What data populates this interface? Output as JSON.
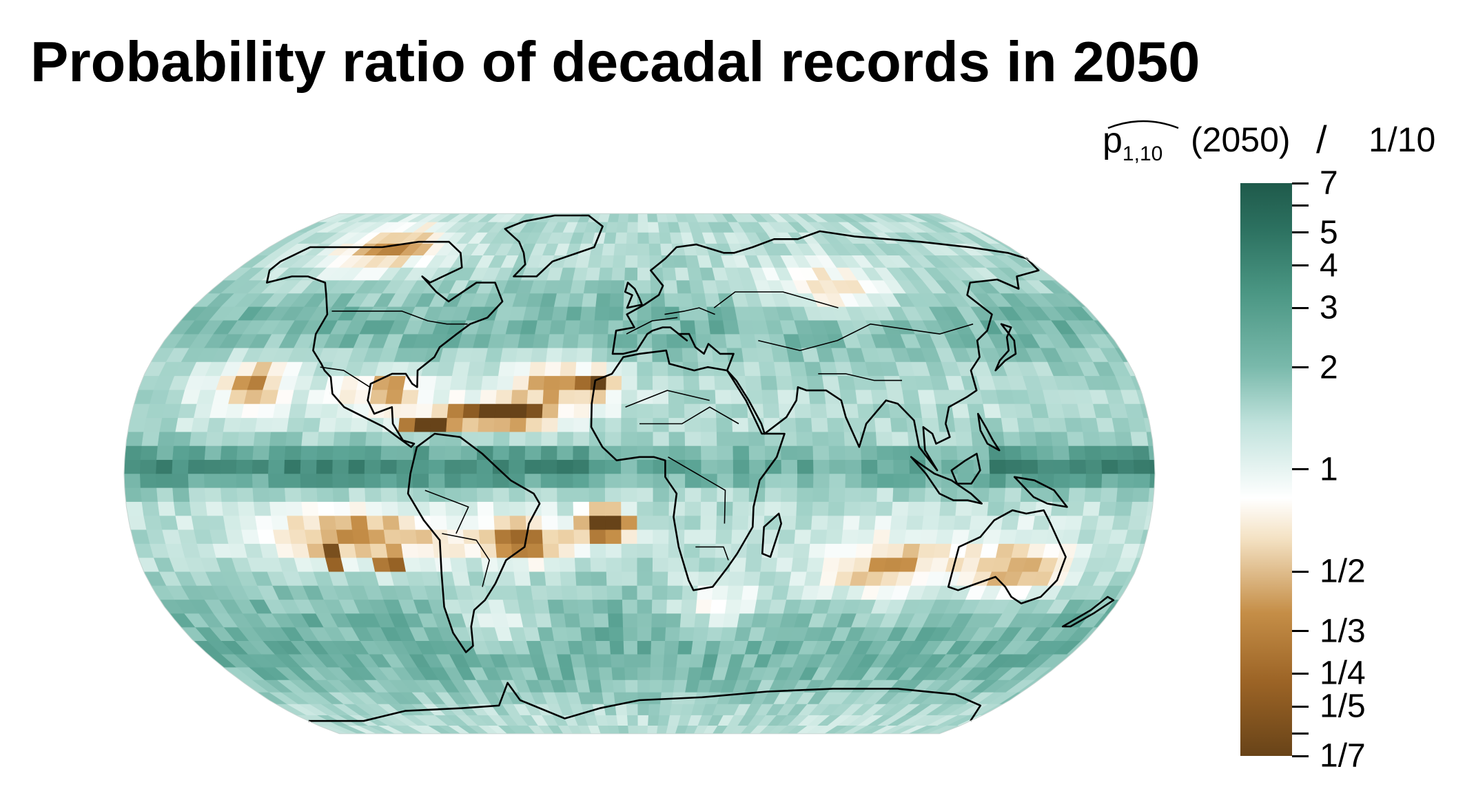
{
  "title": "Probability ratio of decadal records in 2050",
  "legend": {
    "numerator_symbol": "p",
    "numerator_subscript": "1,10",
    "numerator_year": "(2050)",
    "operator": "/",
    "denominator": "1/10",
    "scale": "log",
    "range": [
      0.142857,
      7
    ],
    "ticks": [
      {
        "value": 7,
        "label": "7"
      },
      {
        "value": 6,
        "label": ""
      },
      {
        "value": 5,
        "label": "5"
      },
      {
        "value": 4,
        "label": "4"
      },
      {
        "value": 3,
        "label": "3"
      },
      {
        "value": 2,
        "label": "2"
      },
      {
        "value": 1,
        "label": "1"
      },
      {
        "value": 0.5,
        "label": "1/2"
      },
      {
        "value": 0.333333,
        "label": "1/3"
      },
      {
        "value": 0.25,
        "label": "1/4"
      },
      {
        "value": 0.2,
        "label": "1/5"
      },
      {
        "value": 0.166667,
        "label": ""
      },
      {
        "value": 0.142857,
        "label": "1/7"
      }
    ],
    "colors": {
      "high": "#1f5a4b",
      "mid_high": "#79b9ab",
      "neutral": "#ffffff",
      "mid_low": "#c58e47",
      "low": "#684318"
    }
  },
  "map": {
    "projection": "Robinson",
    "content": "world map with coastlines and country borders over gridded colored cells"
  }
}
